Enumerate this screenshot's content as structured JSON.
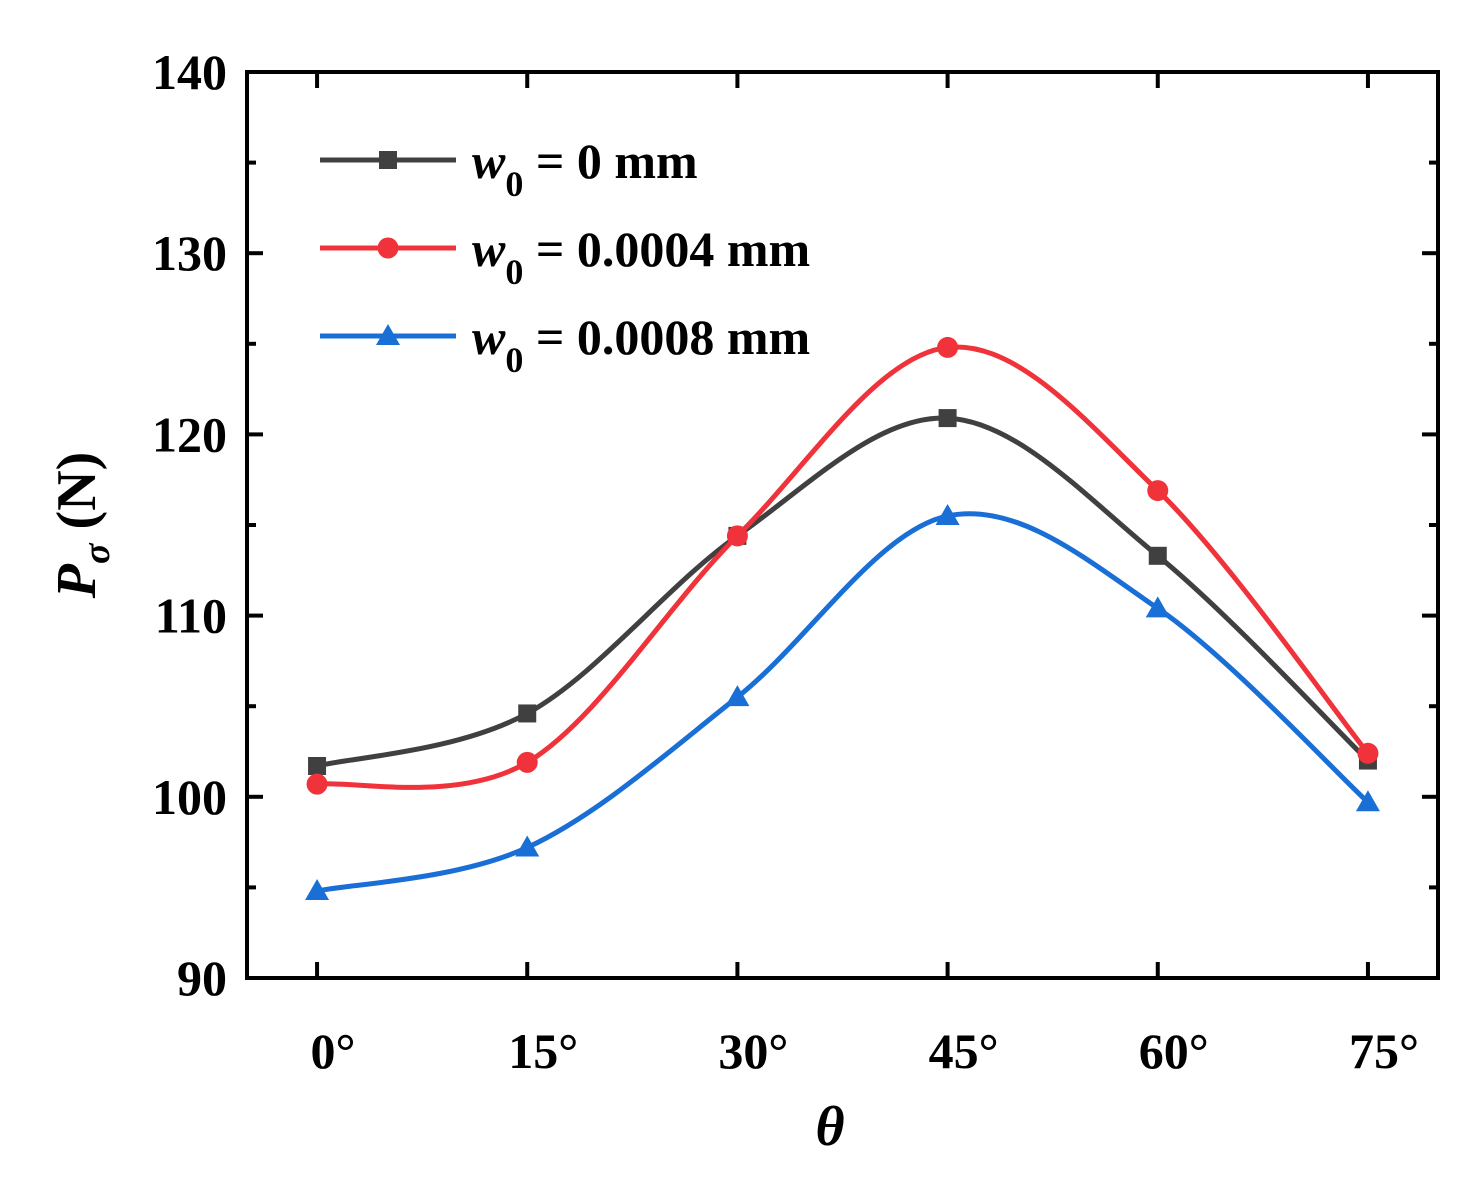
{
  "chart_data": {
    "type": "line",
    "title": "",
    "xlabel": "θ",
    "ylabel_main": "P",
    "ylabel_sub": "σ",
    "ylabel_unit": " (N)",
    "x": [
      0,
      15,
      30,
      45,
      60,
      75
    ],
    "x_tick_labels": [
      "0°",
      "15°",
      "30°",
      "45°",
      "60°",
      "75°"
    ],
    "xlim": [
      -5,
      80
    ],
    "ylim": [
      90,
      140
    ],
    "y_ticks": [
      90,
      100,
      110,
      120,
      130,
      140
    ],
    "y_tick_labels": [
      "90",
      "100",
      "110",
      "120",
      "130",
      "140"
    ],
    "grid": false,
    "legend_position": "top-left",
    "series": [
      {
        "label_var": "w",
        "label_sub": "0",
        "label_rest": " = 0 mm",
        "color": "#404040",
        "marker": "square",
        "values": [
          101.7,
          104.6,
          114.4,
          120.9,
          113.3,
          102.0
        ]
      },
      {
        "label_var": "w",
        "label_sub": "0",
        "label_rest": " = 0.0004 mm",
        "color": "#f0333a",
        "marker": "circle",
        "values": [
          100.7,
          101.9,
          114.4,
          124.8,
          116.9,
          102.4
        ]
      },
      {
        "label_var": "w",
        "label_sub": "0",
        "label_rest": " = 0.0008 mm",
        "color": "#1a6fd6",
        "marker": "triangle",
        "values": [
          94.8,
          97.2,
          105.5,
          115.5,
          110.4,
          99.7
        ]
      }
    ]
  }
}
